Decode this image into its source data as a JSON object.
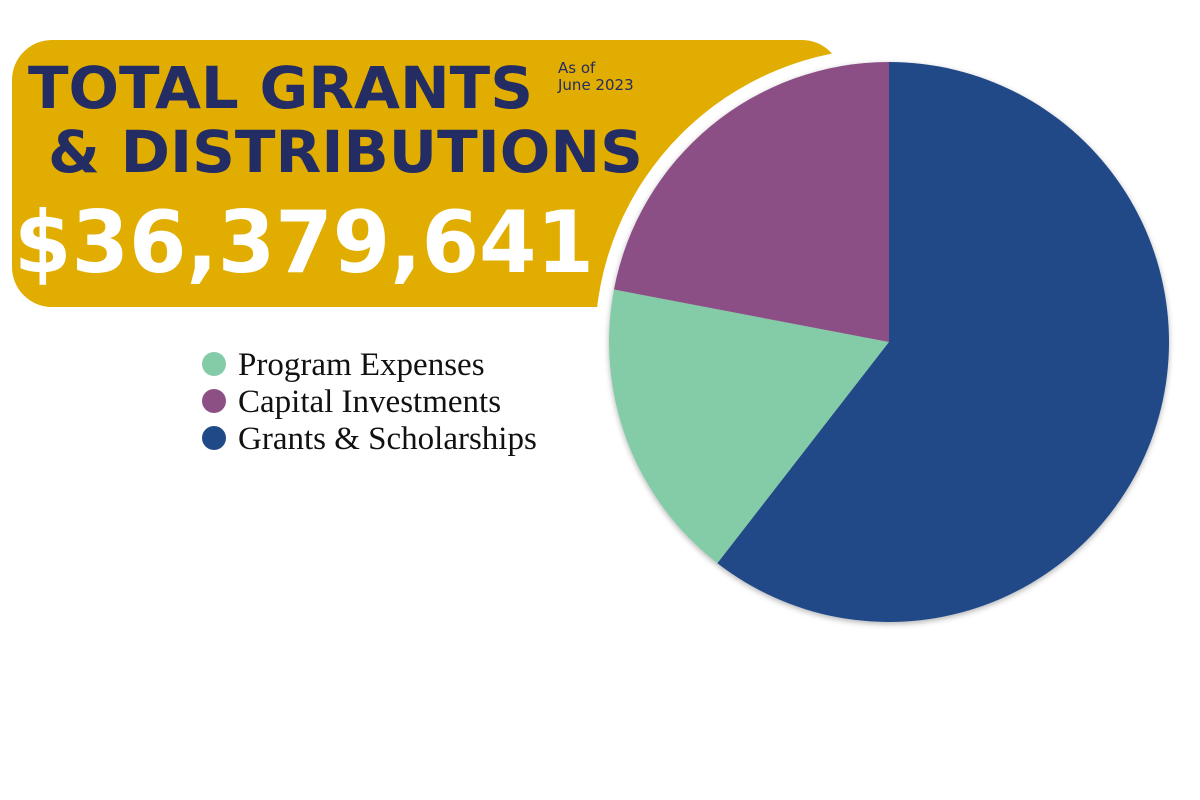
{
  "chart_data": {
    "type": "pie",
    "title_lines": [
      "TOTAL GRANTS",
      "& DISTRIBUTIONS"
    ],
    "subtitle_lines": [
      "As of",
      "June 2023"
    ],
    "total": "$36,379,641",
    "categories": [
      "Program Expenses",
      "Capital Investments",
      "Grants & Scholarships"
    ],
    "values": [
      17.5,
      22,
      60.5
    ],
    "colors": [
      "#84cba8",
      "#8c5085",
      "#204a87"
    ],
    "legend": "left"
  }
}
